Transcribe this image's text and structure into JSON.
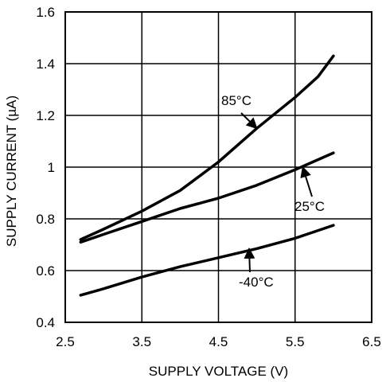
{
  "chart_data": {
    "type": "line",
    "title": "",
    "xlabel": "SUPPLY VOLTAGE (V)",
    "ylabel": "SUPPLY CURRENT (µA)",
    "xlim": [
      2.5,
      6.5
    ],
    "ylim": [
      0.4,
      1.6
    ],
    "xticks": [
      "2.5",
      "3.5",
      "4.5",
      "5.5",
      "6.5"
    ],
    "yticks": [
      "0.4",
      "0.6",
      "0.8",
      "1",
      "1.2",
      "1.4",
      "1.6"
    ],
    "grid": true,
    "legend": "none",
    "series": [
      {
        "name": "85°C",
        "x": [
          2.7,
          3.0,
          3.5,
          4.0,
          4.5,
          5.0,
          5.5,
          5.8,
          6.0
        ],
        "y": [
          0.72,
          0.76,
          0.83,
          0.91,
          1.02,
          1.15,
          1.27,
          1.35,
          1.43
        ]
      },
      {
        "name": "25°C",
        "x": [
          2.7,
          3.0,
          3.5,
          4.0,
          4.5,
          5.0,
          5.5,
          6.0
        ],
        "y": [
          0.71,
          0.74,
          0.79,
          0.84,
          0.88,
          0.93,
          0.99,
          1.055
        ]
      },
      {
        "name": "-40°C",
        "x": [
          2.7,
          3.0,
          3.5,
          4.0,
          4.5,
          5.0,
          5.5,
          6.0
        ],
        "y": [
          0.505,
          0.53,
          0.575,
          0.615,
          0.65,
          0.685,
          0.725,
          0.775
        ]
      }
    ],
    "annotations": [
      {
        "text": "85°C",
        "series": 0,
        "arrow_to": [
          5.0,
          1.15
        ]
      },
      {
        "text": "25°C",
        "series": 1,
        "arrow_to": [
          5.6,
          1.0
        ]
      },
      {
        "text": "-40°C",
        "series": 2,
        "arrow_to": [
          4.9,
          0.685
        ]
      }
    ]
  }
}
